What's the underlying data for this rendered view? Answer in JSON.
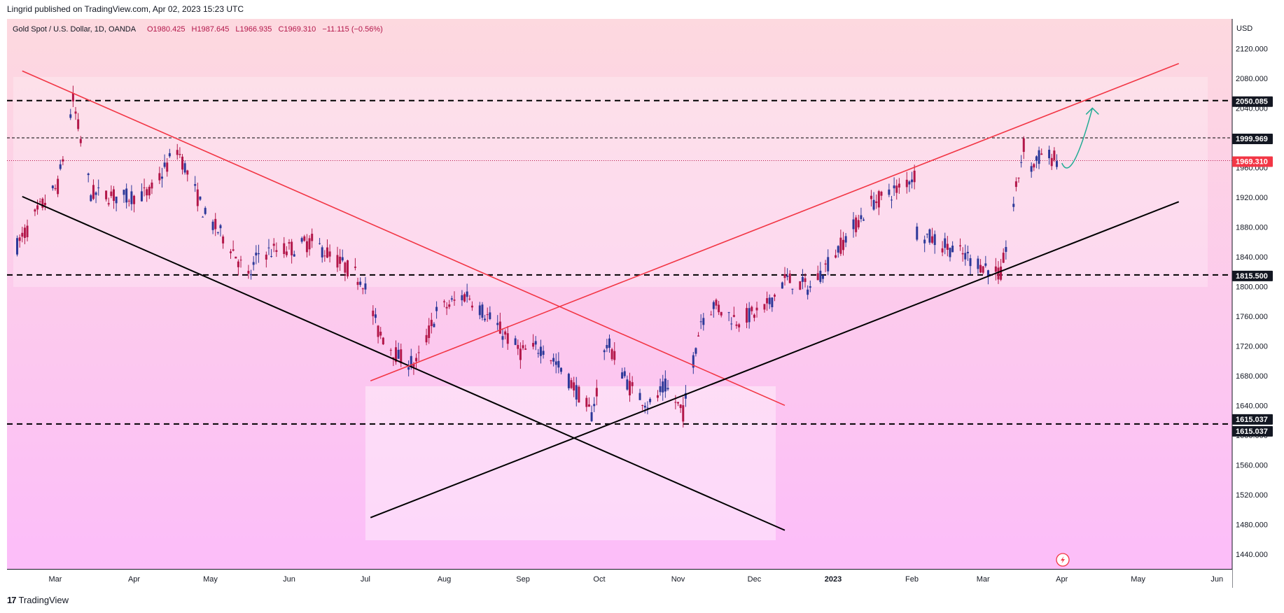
{
  "header": {
    "text": "Lingrid published on TradingView.com, Apr 02, 2023 15:23 UTC"
  },
  "footer": {
    "logo": "17",
    "brand": "TradingView"
  },
  "chart_data": {
    "type": "candlestick",
    "symbol_legend": {
      "name": "Gold Spot / U.S. Dollar, 1D, OANDA",
      "open": "O1980.425",
      "high": "H1987.645",
      "low": "L1966.935",
      "close": "C1969.310",
      "change": "−11.115 (−0.56%)"
    },
    "currency": "USD",
    "ylim": [
      1420,
      2160
    ],
    "y_ticks": [
      1440,
      1480,
      1520,
      1560,
      1600,
      1640,
      1680,
      1720,
      1760,
      1800,
      1840,
      1880,
      1920,
      1960,
      2000,
      2040,
      2080,
      2120
    ],
    "y_tick_labels": [
      "1440.000",
      "1480.000",
      "1520.000",
      "1560.000",
      "1600.000",
      "1640.000",
      "1680.000",
      "1720.000",
      "1760.000",
      "1800.000",
      "1840.000",
      "1880.000",
      "1920.000",
      "1960.000",
      "2000.000",
      "2040.000",
      "2080.000",
      "2120.000"
    ],
    "x_labels": [
      {
        "label": "Mar",
        "date": "2022-03-01"
      },
      {
        "label": "Apr",
        "date": "2022-04-01"
      },
      {
        "label": "May",
        "date": "2022-05-01"
      },
      {
        "label": "Jun",
        "date": "2022-06-01"
      },
      {
        "label": "Jul",
        "date": "2022-07-01"
      },
      {
        "label": "Aug",
        "date": "2022-08-01"
      },
      {
        "label": "Sep",
        "date": "2022-09-01"
      },
      {
        "label": "Oct",
        "date": "2022-10-01"
      },
      {
        "label": "Nov",
        "date": "2022-11-01"
      },
      {
        "label": "Dec",
        "date": "2022-12-01"
      },
      {
        "label": "2023",
        "date": "2023-01-01",
        "bold": true
      },
      {
        "label": "Feb",
        "date": "2023-02-01"
      },
      {
        "label": "Mar",
        "date": "2023-03-01"
      },
      {
        "label": "Apr",
        "date": "2023-04-01"
      },
      {
        "label": "May",
        "date": "2023-05-01"
      },
      {
        "label": "Jun",
        "date": "2023-06-01"
      }
    ],
    "price_path": [
      [
        "2022-02-14",
        1855
      ],
      [
        "2022-02-24",
        1910
      ],
      [
        "2022-03-02",
        1935
      ],
      [
        "2022-03-08",
        2050
      ],
      [
        "2022-03-15",
        1925
      ],
      [
        "2022-03-28",
        1920
      ],
      [
        "2022-04-07",
        1925
      ],
      [
        "2022-04-18",
        1985
      ],
      [
        "2022-04-29",
        1895
      ],
      [
        "2022-05-09",
        1855
      ],
      [
        "2022-05-16",
        1810
      ],
      [
        "2022-05-20",
        1845
      ],
      [
        "2022-06-01",
        1850
      ],
      [
        "2022-06-10",
        1860
      ],
      [
        "2022-06-20",
        1835
      ],
      [
        "2022-06-30",
        1808
      ],
      [
        "2022-07-06",
        1740
      ],
      [
        "2022-07-14",
        1705
      ],
      [
        "2022-07-21",
        1695
      ],
      [
        "2022-07-29",
        1765
      ],
      [
        "2022-08-10",
        1790
      ],
      [
        "2022-08-18",
        1760
      ],
      [
        "2022-08-31",
        1712
      ],
      [
        "2022-09-09",
        1718
      ],
      [
        "2022-09-20",
        1670
      ],
      [
        "2022-09-28",
        1628
      ],
      [
        "2022-10-04",
        1725
      ],
      [
        "2022-10-13",
        1665
      ],
      [
        "2022-10-21",
        1640
      ],
      [
        "2022-10-27",
        1665
      ],
      [
        "2022-11-03",
        1630
      ],
      [
        "2022-11-10",
        1755
      ],
      [
        "2022-11-15",
        1775
      ],
      [
        "2022-11-24",
        1755
      ],
      [
        "2022-12-05",
        1768
      ],
      [
        "2022-12-13",
        1810
      ],
      [
        "2022-12-23",
        1798
      ],
      [
        "2023-01-06",
        1865
      ],
      [
        "2023-01-16",
        1912
      ],
      [
        "2023-01-26",
        1930
      ],
      [
        "2023-02-02",
        1950
      ],
      [
        "2023-02-03",
        1875
      ],
      [
        "2023-02-14",
        1855
      ],
      [
        "2023-02-28",
        1830
      ],
      [
        "2023-03-08",
        1815
      ],
      [
        "2023-03-13",
        1910
      ],
      [
        "2023-03-17",
        1990
      ],
      [
        "2023-03-20",
        1960
      ],
      [
        "2023-03-24",
        1978
      ],
      [
        "2023-03-31",
        1969
      ]
    ],
    "levels": [
      {
        "value": 2050.085,
        "label": "2050.085",
        "style": "dashed-bold"
      },
      {
        "value": 1999.969,
        "label": "1999.969",
        "style": "dashed-thin"
      },
      {
        "value": 1969.31,
        "label": "1969.310",
        "style": "dotted-red",
        "current": true
      },
      {
        "value": 1815.5,
        "label": "1815.500",
        "style": "dashed-bold"
      },
      {
        "value": 1615.037,
        "label": "1615.037",
        "style": "dashed-bold",
        "double_tag": true
      }
    ],
    "trendlines": [
      {
        "name": "red-descending",
        "color": "#f23645",
        "from": [
          "2022-02-16",
          2090
        ],
        "to": [
          "2022-12-13",
          1640
        ]
      },
      {
        "name": "black-descending",
        "color": "#000000",
        "from": [
          "2022-02-16",
          1921
        ],
        "to": [
          "2022-12-13",
          1472
        ]
      },
      {
        "name": "red-ascending",
        "color": "#f23645",
        "from": [
          "2022-07-03",
          1673
        ],
        "to": [
          "2023-05-17",
          2100
        ]
      },
      {
        "name": "black-ascending",
        "color": "#000000",
        "from": [
          "2022-07-03",
          1489
        ],
        "to": [
          "2023-05-17",
          1914
        ]
      }
    ],
    "projection_arrow": {
      "color": "#22ab94",
      "points": [
        [
          "2023-04-01",
          1966
        ],
        [
          "2023-04-07",
          1960
        ],
        [
          "2023-04-13",
          2040
        ]
      ]
    },
    "colors": {
      "up": "#2c3899",
      "down": "#b3174a",
      "accent": "#f23645",
      "bg_top": "#fdd9df",
      "bg_bottom": "#fbbcf9"
    }
  }
}
